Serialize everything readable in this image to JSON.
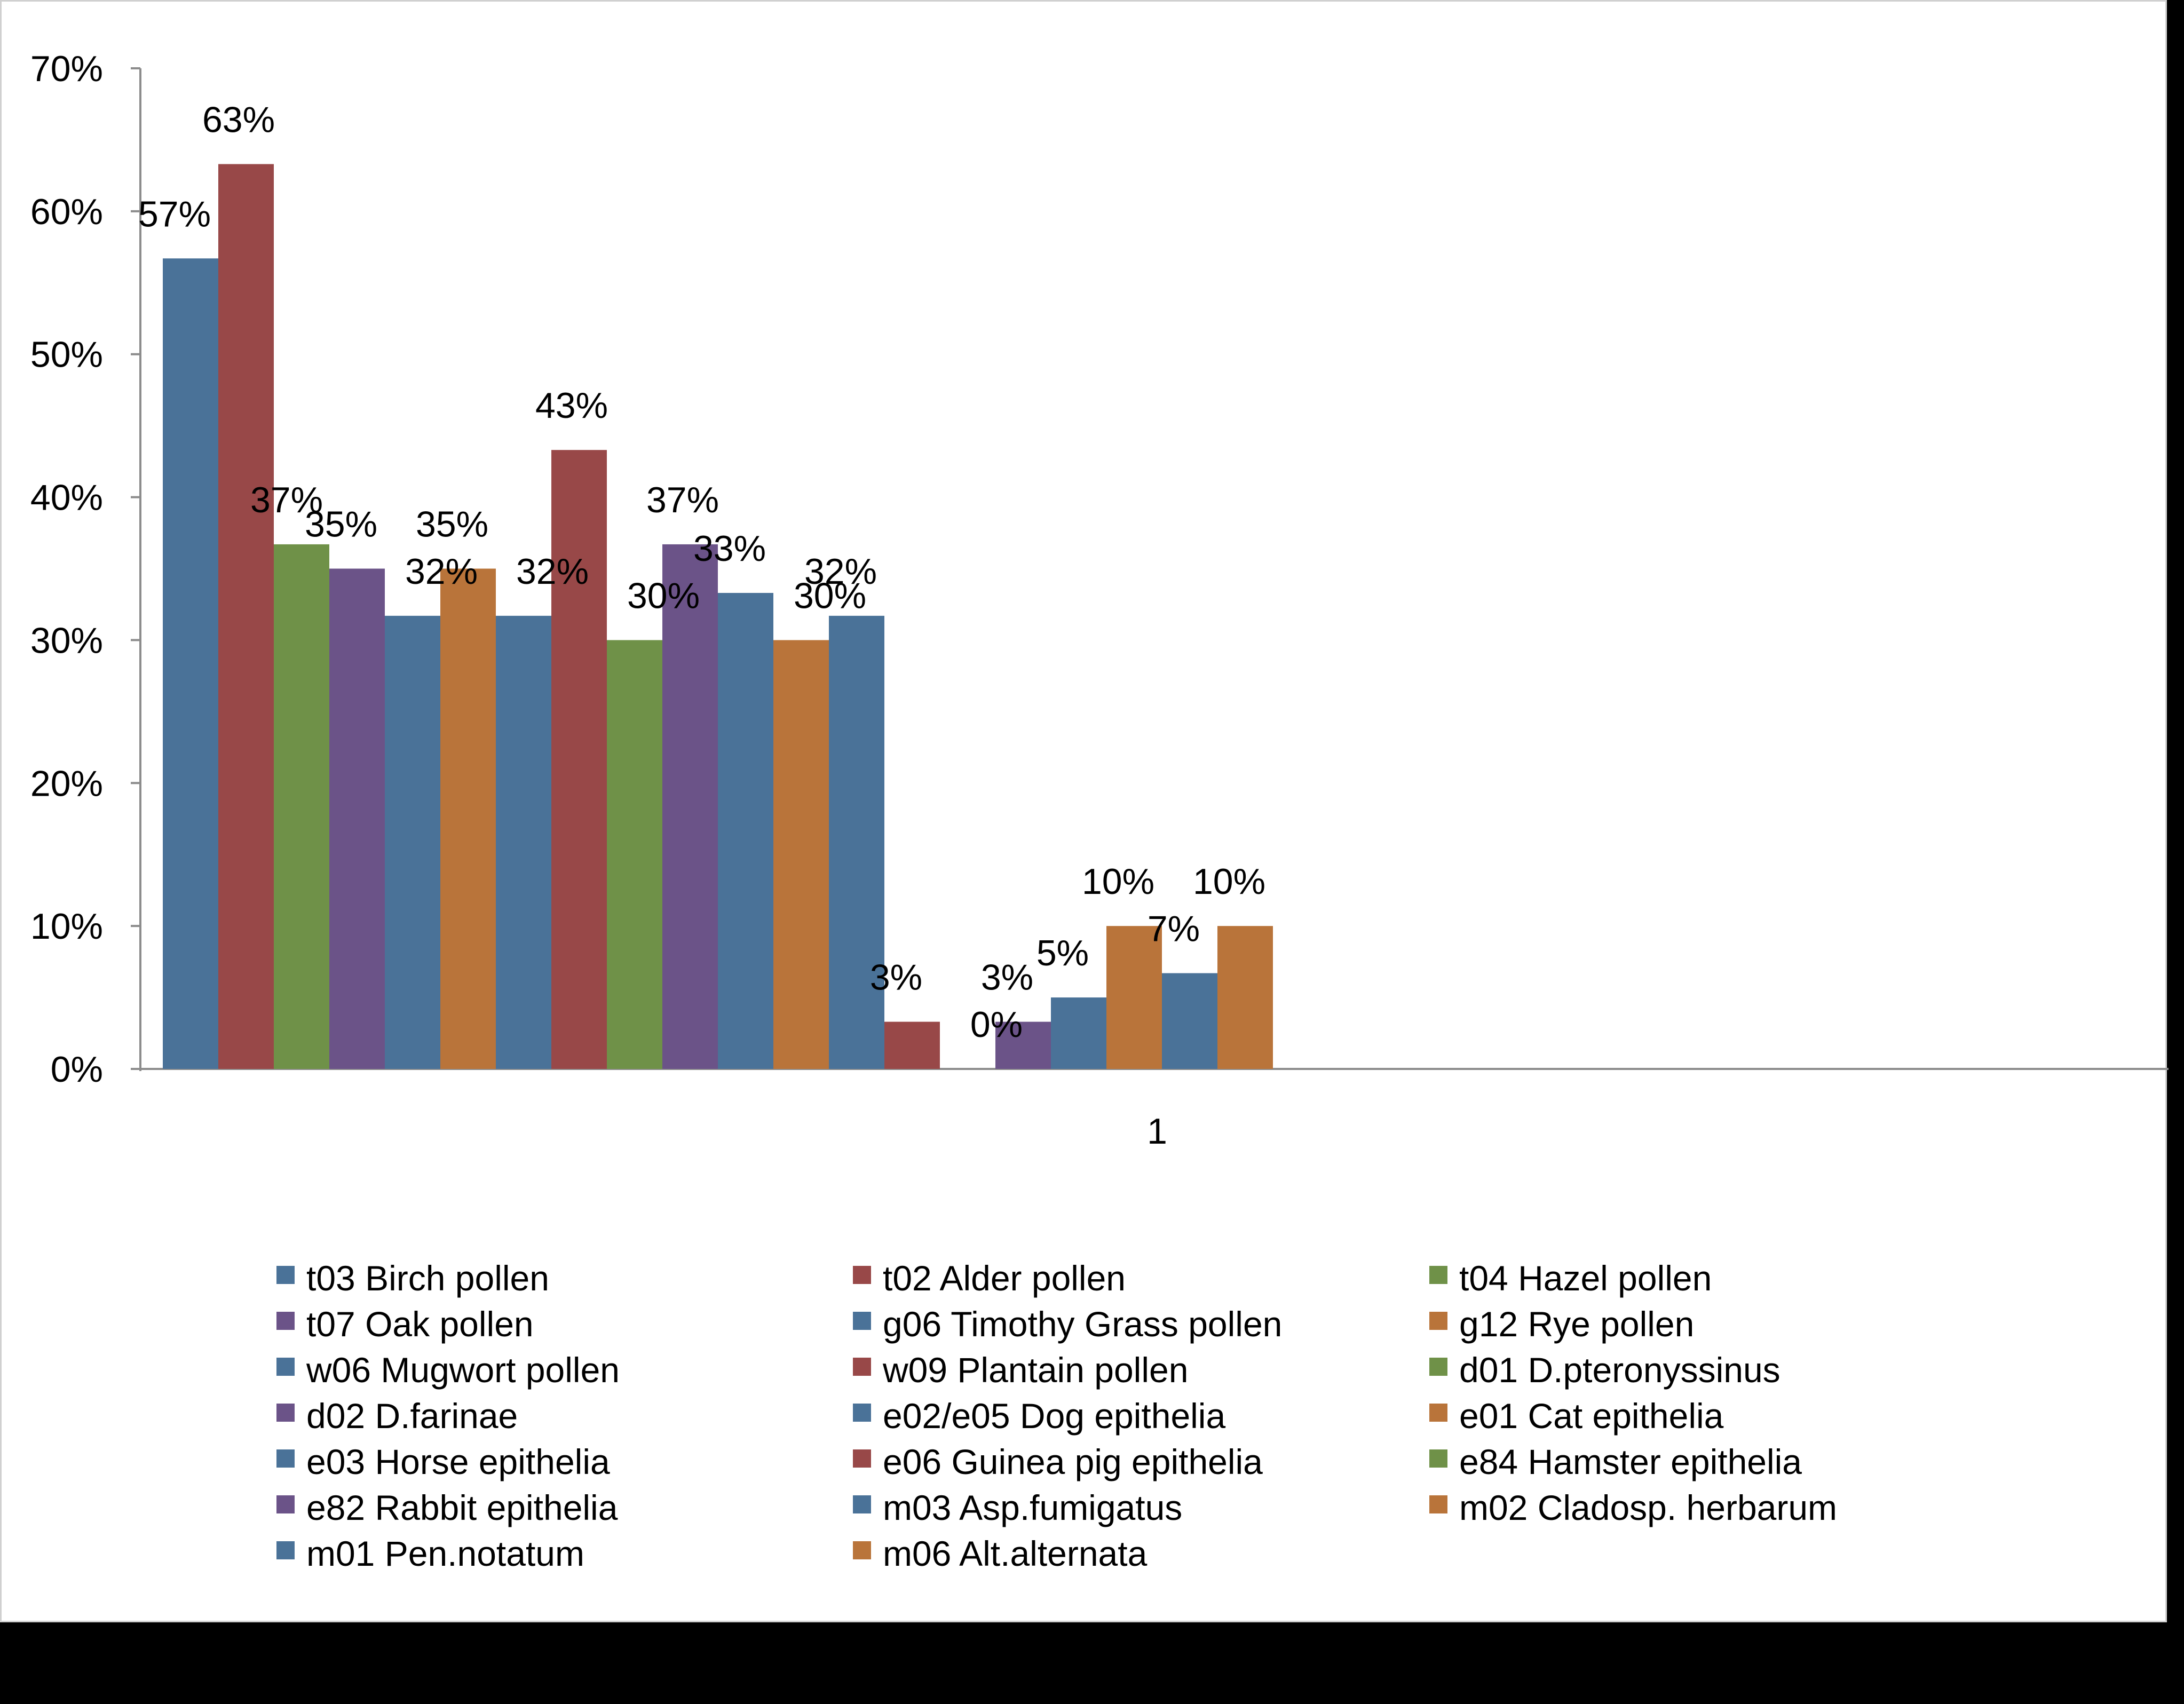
{
  "chart_data": {
    "type": "bar",
    "title": "",
    "xlabel": "",
    "ylabel": "",
    "categories": [
      "1"
    ],
    "ylim": [
      0,
      0.7
    ],
    "yticks": [
      "0%",
      "10%",
      "20%",
      "30%",
      "40%",
      "50%",
      "60%",
      "70%"
    ],
    "grid": false,
    "legend_position": "bottom",
    "series": [
      {
        "name": "t03 Birch pollen",
        "values": [
          0.567
        ],
        "label": "57%",
        "color": "#4a7298"
      },
      {
        "name": "t02 Alder pollen",
        "values": [
          0.633
        ],
        "label": "63%",
        "color": "#984848"
      },
      {
        "name": "t04 Hazel pollen",
        "values": [
          0.367
        ],
        "label": "37%",
        "color": "#6f9148"
      },
      {
        "name": "t07 Oak pollen",
        "values": [
          0.35
        ],
        "label": "35%",
        "color": "#6b5388"
      },
      {
        "name": "g06 Timothy Grass pollen",
        "values": [
          0.317
        ],
        "label": "32%",
        "color": "#4a7298"
      },
      {
        "name": "g12 Rye pollen",
        "values": [
          0.35
        ],
        "label": "35%",
        "color": "#b9743a"
      },
      {
        "name": "w06 Mugwort pollen",
        "values": [
          0.317
        ],
        "label": "32%",
        "color": "#4a7298"
      },
      {
        "name": "w09 Plantain pollen",
        "values": [
          0.433
        ],
        "label": "43%",
        "color": "#984848"
      },
      {
        "name": "d01 D.pteronyssinus",
        "values": [
          0.3
        ],
        "label": "30%",
        "color": "#6f9148"
      },
      {
        "name": "d02 D.farinae",
        "values": [
          0.367
        ],
        "label": "37%",
        "color": "#6b5388"
      },
      {
        "name": "e02/e05 Dog epithelia",
        "values": [
          0.333
        ],
        "label": "33%",
        "color": "#4a7298"
      },
      {
        "name": "e01 Cat epithelia",
        "values": [
          0.3
        ],
        "label": "30%",
        "color": "#b9743a"
      },
      {
        "name": "e03 Horse epithelia",
        "values": [
          0.317
        ],
        "label": "32%",
        "color": "#4a7298"
      },
      {
        "name": "e06 Guinea pig epithelia",
        "values": [
          0.033
        ],
        "label": "3%",
        "color": "#984848"
      },
      {
        "name": "e84 Hamster epithelia",
        "values": [
          0.0
        ],
        "label": "0%",
        "color": "#6f9148"
      },
      {
        "name": "e82 Rabbit epithelia",
        "values": [
          0.033
        ],
        "label": "3%",
        "color": "#6b5388"
      },
      {
        "name": "m03 Asp.fumigatus",
        "values": [
          0.05
        ],
        "label": "5%",
        "color": "#4a7298"
      },
      {
        "name": "m02 Cladosp. herbarum",
        "values": [
          0.1
        ],
        "label": "10%",
        "color": "#b9743a"
      },
      {
        "name": "m01 Pen.notatum",
        "values": [
          0.067
        ],
        "label": "7%",
        "color": "#4a7298"
      },
      {
        "name": "m06 Alt.alternata",
        "values": [
          0.1
        ],
        "label": "10%",
        "color": "#b9743a"
      }
    ]
  }
}
